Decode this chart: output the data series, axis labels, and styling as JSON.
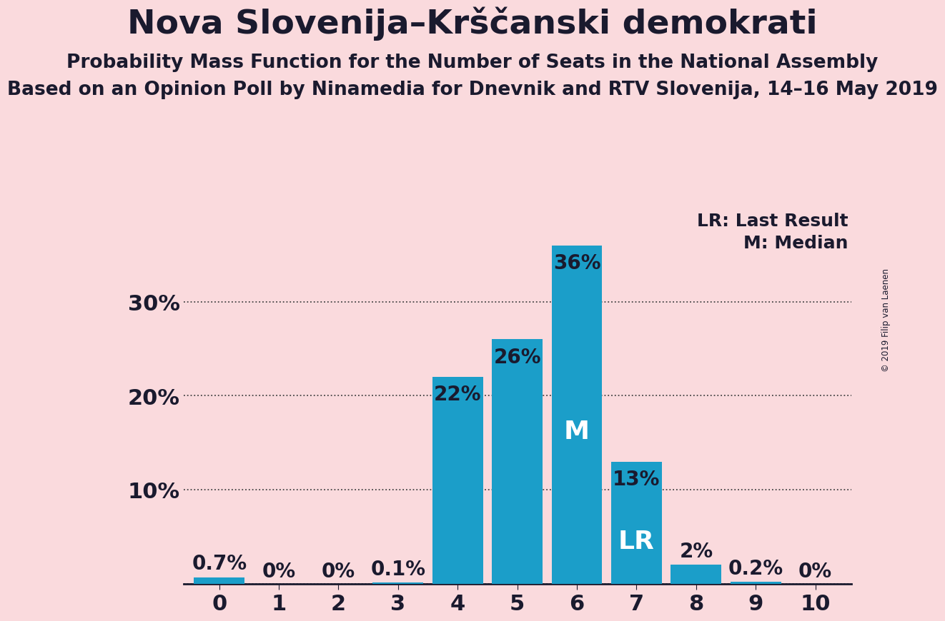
{
  "title": "Nova Slovenija–Krščanski demokrati",
  "subtitle1": "Probability Mass Function for the Number of Seats in the National Assembly",
  "subtitle2": "Based on an Opinion Poll by Ninamedia for Dnevnik and RTV Slovenija, 14–16 May 2019",
  "copyright": "© 2019 Filip van Laenen",
  "categories": [
    0,
    1,
    2,
    3,
    4,
    5,
    6,
    7,
    8,
    9,
    10
  ],
  "values": [
    0.7,
    0.0,
    0.0,
    0.1,
    22.0,
    26.0,
    36.0,
    13.0,
    2.0,
    0.2,
    0.0
  ],
  "labels": [
    "0.7%",
    "0%",
    "0%",
    "0.1%",
    "22%",
    "26%",
    "36%",
    "13%",
    "2%",
    "0.2%",
    "0%"
  ],
  "bar_color": "#1b9ec9",
  "background_color": "#fadadd",
  "text_color": "#1a1a2e",
  "ylim": [
    0,
    40
  ],
  "yticks": [
    0,
    10,
    20,
    30
  ],
  "ytick_labels": [
    "",
    "10%",
    "20%",
    "30%"
  ],
  "median_seat": 6,
  "last_result_seat": 7,
  "legend_text1": "LR: Last Result",
  "legend_text2": "M: Median",
  "title_fontsize": 34,
  "subtitle1_fontsize": 19,
  "subtitle2_fontsize": 19,
  "bar_label_fontsize": 20,
  "axis_label_fontsize": 22,
  "ytick_fontsize": 22,
  "legend_fontsize": 18,
  "inside_label_threshold": 3.0
}
